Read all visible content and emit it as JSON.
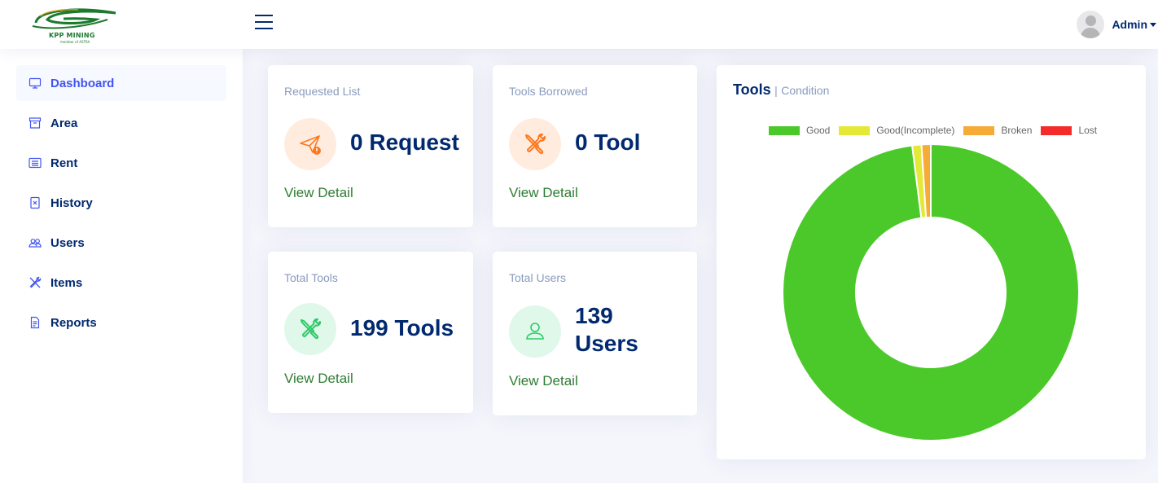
{
  "brand": {
    "name": "KPP MINING",
    "tagline": "member of ASTRA"
  },
  "header": {
    "user_name": "Admin"
  },
  "sidebar": {
    "items": [
      {
        "label": "Dashboard",
        "icon": "monitor-icon",
        "active": true
      },
      {
        "label": "Area",
        "icon": "archive-icon"
      },
      {
        "label": "Rent",
        "icon": "card-list-icon"
      },
      {
        "label": "History",
        "icon": "file-x-icon"
      },
      {
        "label": "Users",
        "icon": "people-icon"
      },
      {
        "label": "Items",
        "icon": "tools-icon"
      },
      {
        "label": "Reports",
        "icon": "file-text-icon"
      }
    ]
  },
  "cards": {
    "requested": {
      "title": "Requested List",
      "value": "0 Request",
      "link": "View Detail",
      "icon": "send-exclamation-icon"
    },
    "borrowed": {
      "title": "Tools Borrowed",
      "value": "0 Tool",
      "link": "View Detail",
      "icon": "tools-icon"
    },
    "total_tools": {
      "title": "Total Tools",
      "value": "199 Tools",
      "link": "View Detail",
      "icon": "tools-icon"
    },
    "total_users": {
      "title": "Total Users",
      "value_line1": "139",
      "value_line2": "Users",
      "link": "View Detail",
      "icon": "person-icon"
    }
  },
  "chart": {
    "title": "Tools",
    "separator": "|",
    "subtitle": "Condition"
  },
  "chart_data": {
    "type": "pie",
    "categories": [
      "Good",
      "Good(Incomplete)",
      "Broken",
      "Lost"
    ],
    "values": [
      195,
      2,
      2,
      0
    ],
    "colors": [
      "#4cc92a",
      "#e4e836",
      "#f5ab35",
      "#f52a2a"
    ],
    "legend": "top",
    "donut": true
  },
  "colors": {
    "accent": "#4154f1",
    "navy": "#012970",
    "muted": "#899bbd",
    "link_green": "#2e7d32",
    "orange": "#ff771d",
    "green": "#2eca6a"
  }
}
